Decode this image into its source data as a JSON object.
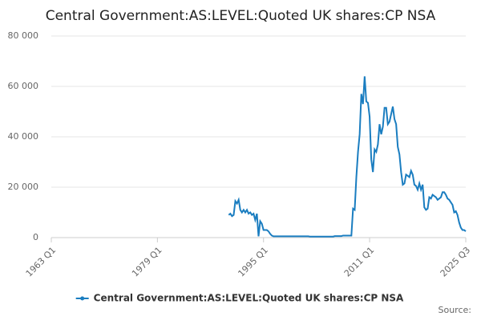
{
  "chart_data": {
    "type": "line",
    "title": "Central Government:AS:LEVEL:Quoted UK shares:CP NSA",
    "source": "Source:",
    "xlim": [
      "1963 Q1",
      "2025 Q3"
    ],
    "xticks": [
      "1963 Q1",
      "1979 Q1",
      "1995 Q1",
      "2011 Q1",
      "2025 Q3"
    ],
    "ylim": [
      0,
      80000
    ],
    "yticks": [
      0,
      {
        "value": 20000,
        "label": "20 000"
      },
      {
        "value": 40000,
        "label": "40 000"
      },
      {
        "value": 60000,
        "label": "60 000"
      },
      {
        "value": 80000,
        "label": "80 000"
      }
    ],
    "grid": true,
    "x": [
      "1989 Q4",
      "1990 Q1",
      "1990 Q2",
      "1990 Q3",
      "1990 Q4",
      "1991 Q1",
      "1991 Q2",
      "1991 Q3",
      "1991 Q4",
      "1992 Q1",
      "1992 Q2",
      "1992 Q3",
      "1992 Q4",
      "1993 Q1",
      "1993 Q2",
      "1993 Q3",
      "1993 Q4",
      "1994 Q1",
      "1994 Q2",
      "1994 Q3",
      "1994 Q4",
      "1995 Q1",
      "1995 Q2",
      "1995 Q3",
      "1995 Q4",
      "1996 Q1",
      "1996 Q2",
      "1996 Q3",
      "1996 Q4",
      "1997 Q1",
      "1997 Q2",
      "1997 Q3",
      "1997 Q4",
      "1998 Q1",
      "1998 Q2",
      "1998 Q3",
      "1998 Q4",
      "1999 Q1",
      "1999 Q2",
      "1999 Q3",
      "1999 Q4",
      "2000 Q1",
      "2000 Q2",
      "2000 Q3",
      "2000 Q4",
      "2001 Q1",
      "2001 Q2",
      "2001 Q3",
      "2001 Q4",
      "2002 Q1",
      "2002 Q2",
      "2002 Q3",
      "2002 Q4",
      "2003 Q1",
      "2003 Q2",
      "2003 Q3",
      "2003 Q4",
      "2004 Q1",
      "2004 Q2",
      "2004 Q3",
      "2004 Q4",
      "2005 Q1",
      "2005 Q2",
      "2005 Q3",
      "2005 Q4",
      "2006 Q1",
      "2006 Q2",
      "2006 Q3",
      "2006 Q4",
      "2007 Q1",
      "2007 Q2",
      "2007 Q3",
      "2007 Q4",
      "2008 Q1",
      "2008 Q2",
      "2008 Q3",
      "2008 Q4",
      "2009 Q1",
      "2009 Q2",
      "2009 Q3",
      "2009 Q4",
      "2010 Q1",
      "2010 Q2",
      "2010 Q3",
      "2010 Q4",
      "2011 Q1",
      "2011 Q2",
      "2011 Q3",
      "2011 Q4",
      "2012 Q1",
      "2012 Q2",
      "2012 Q3",
      "2012 Q4",
      "2013 Q1",
      "2013 Q2",
      "2013 Q3",
      "2013 Q4",
      "2014 Q1",
      "2014 Q2",
      "2014 Q3",
      "2014 Q4",
      "2015 Q1",
      "2015 Q2",
      "2015 Q3",
      "2015 Q4",
      "2016 Q1",
      "2016 Q2",
      "2016 Q3",
      "2016 Q4",
      "2017 Q1",
      "2017 Q2",
      "2017 Q3",
      "2017 Q4",
      "2018 Q1",
      "2018 Q2",
      "2018 Q3",
      "2018 Q4",
      "2019 Q1",
      "2019 Q2",
      "2019 Q3",
      "2019 Q4",
      "2020 Q1",
      "2020 Q2",
      "2020 Q3",
      "2020 Q4",
      "2021 Q1",
      "2021 Q2",
      "2021 Q3",
      "2021 Q4",
      "2022 Q1",
      "2022 Q2",
      "2022 Q3",
      "2022 Q4",
      "2023 Q1",
      "2023 Q2",
      "2023 Q3",
      "2023 Q4",
      "2024 Q1",
      "2024 Q2",
      "2024 Q3",
      "2024 Q4",
      "2025 Q1",
      "2025 Q2",
      "2025 Q3"
    ],
    "series": [
      {
        "name": "Central Government:AS:LEVEL:Quoted UK shares:CP NSA",
        "color": "#1a7dc0",
        "values": [
          9000,
          9500,
          8500,
          9000,
          14500,
          13500,
          15000,
          11000,
          10000,
          11000,
          10000,
          11000,
          9500,
          10000,
          9000,
          9500,
          7000,
          9500,
          500,
          6500,
          5500,
          3000,
          3000,
          3000,
          2500,
          1500,
          800,
          500,
          500,
          500,
          500,
          500,
          500,
          500,
          500,
          500,
          500,
          500,
          500,
          500,
          500,
          500,
          500,
          500,
          500,
          500,
          500,
          500,
          500,
          400,
          400,
          400,
          400,
          400,
          400,
          400,
          400,
          400,
          400,
          400,
          400,
          400,
          400,
          400,
          600,
          600,
          600,
          600,
          600,
          800,
          800,
          800,
          800,
          800,
          800,
          11500,
          11000,
          24000,
          34000,
          41000,
          57000,
          53000,
          64000,
          54000,
          53500,
          48000,
          31000,
          26000,
          35000,
          34000,
          37000,
          45000,
          41000,
          44000,
          51500,
          51500,
          45000,
          46000,
          49000,
          52000,
          47000,
          45000,
          36000,
          33000,
          26000,
          21000,
          21500,
          25000,
          24500,
          24000,
          26500,
          25000,
          21000,
          20500,
          19000,
          21500,
          19000,
          21000,
          12000,
          11000,
          11500,
          16000,
          15500,
          17000,
          16500,
          16000,
          15000,
          15500,
          16000,
          18000,
          18000,
          17000,
          15500,
          15000,
          14000,
          13000,
          10000,
          10500,
          9000,
          6000,
          4000,
          3000,
          3000,
          2500
        ]
      }
    ]
  }
}
